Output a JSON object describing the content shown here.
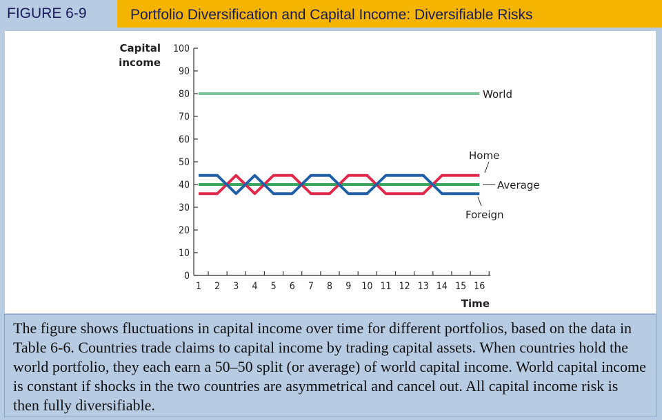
{
  "header": {
    "figure_label": "FIGURE 6-9",
    "title": "Portfolio Diversification and Capital Income: Diversifiable Risks"
  },
  "caption": "The figure shows fluctuations in capital income over time for different portfolios, based on the data in Table 6-6. Countries trade claims to capital income by trading capital assets. When countries hold the world portfolio, they each earn a 50–50 split (or average) of world capital income. World capital income is constant if shocks in the two countries are asymmetrical and cancel out. All capital income risk is then fully diversifiable.",
  "colors": {
    "header_bg": "#f5b400",
    "page_bg": "#b7cbe3",
    "world": "#7dc49a",
    "average": "#3aa55d",
    "home": "#e0284a",
    "foreign": "#1f5fa8"
  },
  "chart_data": {
    "type": "line",
    "ylabel_line1": "Capital",
    "ylabel_line2": "income",
    "xlabel": "Time",
    "ylim": [
      0,
      100
    ],
    "xlim": [
      1,
      16
    ],
    "y_ticks": [
      0,
      10,
      20,
      30,
      40,
      50,
      60,
      70,
      80,
      90,
      100
    ],
    "x_ticks": [
      1,
      2,
      3,
      4,
      5,
      6,
      7,
      8,
      9,
      10,
      11,
      12,
      13,
      14,
      15,
      16
    ],
    "x_range": [
      1,
      16
    ],
    "series": [
      {
        "name": "World",
        "color": "#7dc49a",
        "points": [
          [
            1,
            80
          ],
          [
            16,
            80
          ]
        ]
      },
      {
        "name": "Average",
        "color": "#3aa55d",
        "points": [
          [
            1,
            40
          ],
          [
            16,
            40
          ]
        ]
      },
      {
        "name": "Home",
        "color": "#e0284a",
        "points": [
          [
            1,
            36
          ],
          [
            2,
            36
          ],
          [
            2.5,
            40
          ],
          [
            3,
            44
          ],
          [
            3.5,
            40
          ],
          [
            4,
            36
          ],
          [
            4.5,
            40
          ],
          [
            5,
            44
          ],
          [
            6,
            44
          ],
          [
            6.5,
            40
          ],
          [
            7,
            36
          ],
          [
            8,
            36
          ],
          [
            8.5,
            40
          ],
          [
            9,
            44
          ],
          [
            10,
            44
          ],
          [
            10.5,
            40
          ],
          [
            11,
            36
          ],
          [
            13,
            36
          ],
          [
            13.5,
            40
          ],
          [
            14,
            44
          ],
          [
            16,
            44
          ]
        ]
      },
      {
        "name": "Foreign",
        "color": "#1f5fa8",
        "points": [
          [
            1,
            44
          ],
          [
            2,
            44
          ],
          [
            2.5,
            40
          ],
          [
            3,
            36
          ],
          [
            3.5,
            40
          ],
          [
            4,
            44
          ],
          [
            4.5,
            40
          ],
          [
            5,
            36
          ],
          [
            6,
            36
          ],
          [
            6.5,
            40
          ],
          [
            7,
            44
          ],
          [
            8,
            44
          ],
          [
            8.5,
            40
          ],
          [
            9,
            36
          ],
          [
            10,
            36
          ],
          [
            10.5,
            40
          ],
          [
            11,
            44
          ],
          [
            13,
            44
          ],
          [
            13.5,
            40
          ],
          [
            14,
            36
          ],
          [
            16,
            36
          ]
        ]
      }
    ],
    "labels": {
      "world": "World",
      "home": "Home",
      "average": "Average",
      "foreign": "Foreign"
    }
  }
}
